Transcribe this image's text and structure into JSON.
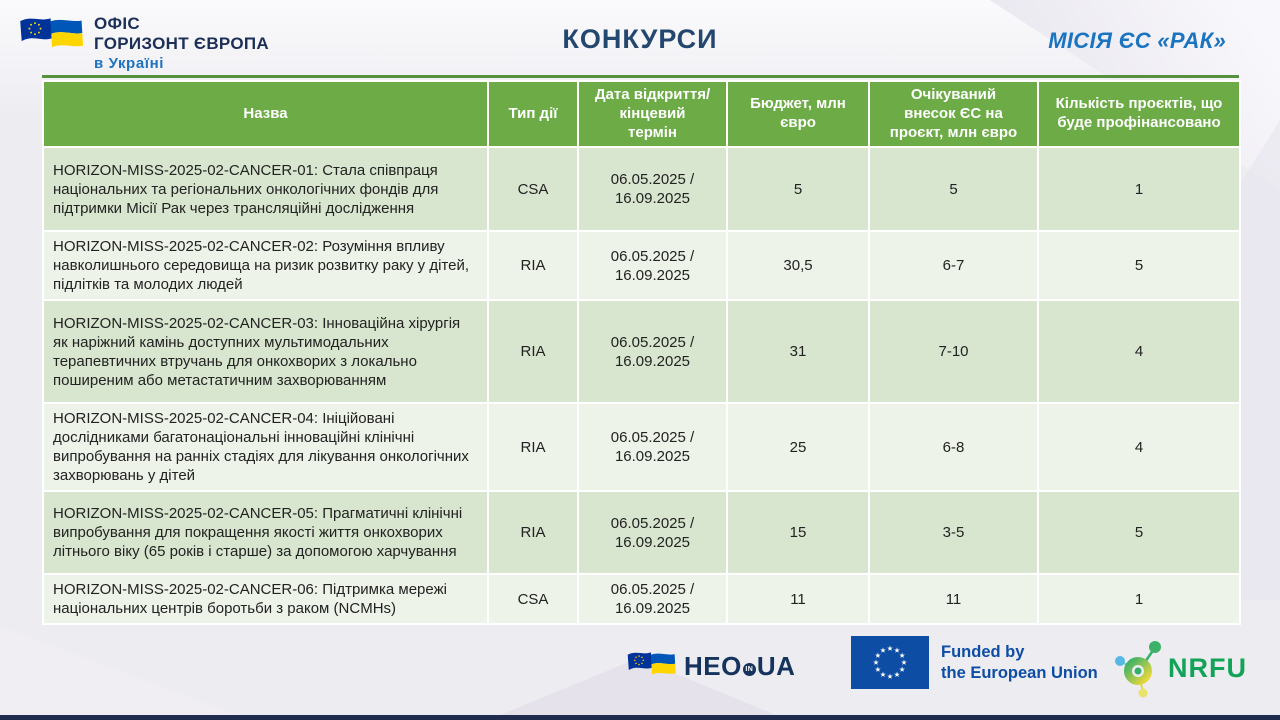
{
  "slide": {
    "office_logo": {
      "line1": "ОФІС",
      "line2": "ГОРИЗОНТ ЄВРОПА",
      "line3": "в Україні"
    },
    "title": "КОНКУРСИ",
    "mission_label": "МІСІЯ ЄС «РАК»"
  },
  "table": {
    "columns": [
      "Назва",
      "Тип дії",
      "Дата відкриття/ кінцевий термін",
      "Бюджет, млн євро",
      "Очікуваний внесок ЄС на проєкт, млн євро",
      "Кількість проєктів, що буде профінансовано"
    ],
    "column_keys": [
      "name",
      "type",
      "dates",
      "budget",
      "contribution",
      "projects"
    ],
    "rows": [
      {
        "name": "HORIZON-MISS-2025-02-CANCER-01: Стала співпраця національних та регіональних онкологічних фондів для підтримки Місії Рак через трансляційні дослідження",
        "type": "CSA",
        "dates": "06.05.2025 / 16.09.2025",
        "budget": "5",
        "contribution": "5",
        "projects": "1"
      },
      {
        "name": "HORIZON-MISS-2025-02-CANCER-02: Розуміння впливу навколишнього середовища на ризик розвитку раку у дітей, підлітків та молодих людей",
        "type": "RIA",
        "dates": "06.05.2025 / 16.09.2025",
        "budget": "30,5",
        "contribution": "6-7",
        "projects": "5"
      },
      {
        "name": "HORIZON-MISS-2025-02-CANCER-03: Інноваційна хірургія як наріжний камінь доступних мультимодальних терапевтичних втручань для онкохворих з локально поширеним або метастатичним захворюванням",
        "type": "RIA",
        "dates": "06.05.2025 / 16.09.2025",
        "budget": "31",
        "contribution": "7-10",
        "projects": "4"
      },
      {
        "name": "HORIZON-MISS-2025-02-CANCER-04: Ініційовані дослідниками багатонаціональні інноваційні клінічні випробування на ранніх стадіях для лікування онкологічних захворювань у дітей",
        "type": "RIA",
        "dates": "06.05.2025 / 16.09.2025",
        "budget": "25",
        "contribution": "6-8",
        "projects": "4"
      },
      {
        "name": "HORIZON-MISS-2025-02-CANCER-05: Прагматичні клінічні випробування для покращення якості життя онкохворих літнього віку (65 років і старше) за допомогою харчування",
        "type": "RIA",
        "dates": "06.05.2025 / 16.09.2025",
        "budget": "15",
        "contribution": "3-5",
        "projects": "5"
      },
      {
        "name": "HORIZON-MISS-2025-02-CANCER-06: Підтримка мережі національних центрів боротьби з раком (NCMHs)",
        "type": "CSA",
        "dates": "06.05.2025 / 16.09.2025",
        "budget": "11",
        "contribution": "11",
        "projects": "1"
      }
    ]
  },
  "footer": {
    "heo_logo": {
      "text_main": "HEO",
      "text_in": "IN",
      "text_ua": "UA"
    },
    "eu_funding": {
      "line1": "Funded by",
      "line2": "the European Union"
    },
    "nrfu": {
      "label": "NRFU"
    }
  },
  "colors": {
    "header_green": "#6cab45",
    "row_light_green": "#d9e6cf",
    "row_pale_green": "#eef3e9",
    "title_navy": "#24476f",
    "mission_blue": "#1b74bf",
    "eu_flag_blue": "#0e4da4",
    "ua_flag_blue": "#0057b7",
    "ua_flag_yellow": "#ffd500",
    "nrfu_green": "#12a358",
    "bottom_bar_navy": "#202c4e"
  }
}
